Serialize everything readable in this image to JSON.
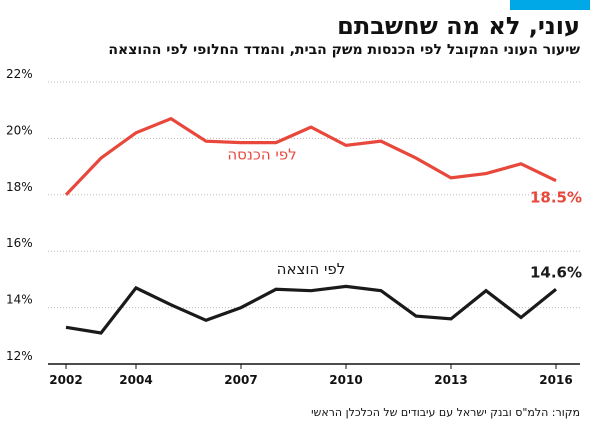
{
  "header": {
    "title": "עוני, לא מה שחשבתם",
    "subtitle": "שיעור העוני המקובל לפי הכנסות משק הבית, והמדד החלופי לפי ההוצאה",
    "source": "מקור: הלמ\"ס ובנק ישראל עם עיבודים של הכלכלן הראשי"
  },
  "colors": {
    "accent": "#00a8e8",
    "income": "#e8483b",
    "expenditure": "#1a1a1a"
  },
  "chart_data": {
    "type": "line",
    "x": [
      2002,
      2003,
      2004,
      2005,
      2006,
      2007,
      2008,
      2009,
      2010,
      2011,
      2012,
      2013,
      2014,
      2015,
      2016
    ],
    "xtick_labels": [
      "2002",
      "2004",
      "2007",
      "2010",
      "2013",
      "2016"
    ],
    "xtick_values": [
      2002,
      2004,
      2007,
      2010,
      2013,
      2016
    ],
    "ytick_labels": [
      "12%",
      "14%",
      "16%",
      "18%",
      "20%",
      "22%"
    ],
    "ytick_values": [
      12,
      14,
      16,
      18,
      20,
      22
    ],
    "ylim": [
      12,
      22
    ],
    "xlim": [
      2002,
      2016
    ],
    "grid": "horizontal",
    "series": [
      {
        "name": "לפי הכנסה",
        "color": "#e8483b",
        "values": [
          18.0,
          19.3,
          20.2,
          20.7,
          19.9,
          19.85,
          19.85,
          20.4,
          19.75,
          19.9,
          19.3,
          18.6,
          18.75,
          19.1,
          18.5
        ],
        "end_label": "18.5%"
      },
      {
        "name": "לפי הוצאה",
        "color": "#1a1a1a",
        "values": [
          13.3,
          13.1,
          14.7,
          14.1,
          13.55,
          14.0,
          14.65,
          14.6,
          14.75,
          14.6,
          13.7,
          13.6,
          14.6,
          13.65,
          14.65
        ],
        "end_label": "14.6%"
      }
    ]
  }
}
